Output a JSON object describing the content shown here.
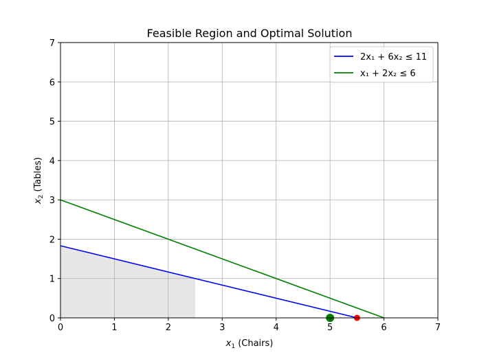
{
  "chart_data": {
    "type": "line",
    "title": "Feasible Region and Optimal Solution",
    "xlabel": {
      "symbol": "x",
      "sub": "1",
      "rest": " (Chairs)"
    },
    "ylabel": {
      "symbol": "x",
      "sub": "2",
      "rest": " (Tables)"
    },
    "xlim": [
      0,
      7
    ],
    "ylim": [
      0,
      7
    ],
    "xticks": [
      0,
      1,
      2,
      3,
      4,
      5,
      6,
      7
    ],
    "yticks": [
      0,
      1,
      2,
      3,
      4,
      5,
      6,
      7
    ],
    "grid": true,
    "legend_position": "top-right",
    "series": [
      {
        "name": "2x₁ + 6x₂ ≤ 11",
        "color": "#0000ff",
        "points": [
          [
            0,
            1.8333
          ],
          [
            5.5,
            0
          ]
        ]
      },
      {
        "name": "x₁ + 2x₂ ≤ 6",
        "color": "#008000",
        "points": [
          [
            0,
            3
          ],
          [
            6,
            0
          ]
        ]
      }
    ],
    "feasible_region": {
      "color": "#e6e6e6",
      "polygon": [
        [
          0,
          0
        ],
        [
          0,
          1.8333
        ],
        [
          2.5,
          1.0
        ],
        [
          2.5,
          0
        ]
      ]
    },
    "markers": [
      {
        "x": 5,
        "y": 0,
        "color": "#008000",
        "size": "large"
      },
      {
        "x": 5.5,
        "y": 0,
        "color": "#ff0000",
        "size": "small"
      }
    ]
  }
}
